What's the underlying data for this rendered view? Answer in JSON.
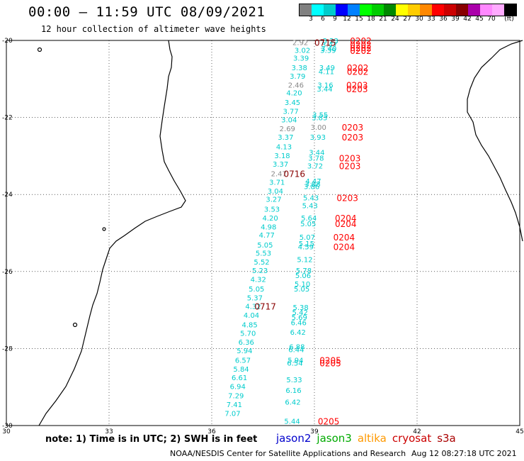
{
  "header": {
    "title": "00:00 – 11:59 UTC 08/09/2021",
    "subtitle": "12 hour collection of altimeter wave heights"
  },
  "legend": {
    "swatches": [
      "#808080",
      "#00ffff",
      "#00cccc",
      "#0000ff",
      "#0080ff",
      "#00ff00",
      "#00cc00",
      "#008800",
      "#ffff00",
      "#ffcc00",
      "#ff8800",
      "#ff0000",
      "#cc0000",
      "#880000",
      "#aa00aa",
      "#ff88ff",
      "#ffaaff",
      "#000000"
    ],
    "labels": [
      "3",
      "6",
      "9",
      "12",
      "15",
      "18",
      "21",
      "24",
      "27",
      "30",
      "33",
      "36",
      "39",
      "42",
      "45",
      "70",
      "(ft)"
    ]
  },
  "map": {
    "lon_ticks": [
      "30",
      "33",
      "36",
      "39",
      "42",
      "45"
    ],
    "lat_ticks": [
      "-20",
      "-22",
      "-24",
      "-26",
      "-28",
      "-30"
    ]
  },
  "track_values": [
    {
      "lon": 38.82,
      "lat": -20.05,
      "value": "2.92",
      "color": "#888888"
    },
    {
      "lon": 38.88,
      "lat": -20.25,
      "value": "3.02",
      "color": "#00cccc"
    },
    {
      "lon": 38.84,
      "lat": -20.45,
      "value": "3.39",
      "color": "#00cccc"
    },
    {
      "lon": 38.79,
      "lat": -20.7,
      "value": "3.38",
      "color": "#00cccc"
    },
    {
      "lon": 38.74,
      "lat": -20.92,
      "value": "3.79",
      "color": "#00cccc"
    },
    {
      "lon": 38.69,
      "lat": -21.15,
      "value": "2.46",
      "color": "#888888"
    },
    {
      "lon": 38.64,
      "lat": -21.35,
      "value": "4.20",
      "color": "#00cccc"
    },
    {
      "lon": 38.59,
      "lat": -21.6,
      "value": "3.45",
      "color": "#00cccc"
    },
    {
      "lon": 38.54,
      "lat": -21.83,
      "value": "3.77",
      "color": "#00cccc"
    },
    {
      "lon": 38.49,
      "lat": -22.05,
      "value": "3.04",
      "color": "#00cccc"
    },
    {
      "lon": 38.44,
      "lat": -22.28,
      "value": "2.69",
      "color": "#888888"
    },
    {
      "lon": 38.39,
      "lat": -22.5,
      "value": "3.37",
      "color": "#00cccc"
    },
    {
      "lon": 38.34,
      "lat": -22.75,
      "value": "4.13",
      "color": "#00cccc"
    },
    {
      "lon": 38.29,
      "lat": -22.98,
      "value": "3.18",
      "color": "#00cccc"
    },
    {
      "lon": 38.24,
      "lat": -23.2,
      "value": "3.37",
      "color": "#00cccc"
    },
    {
      "lon": 38.19,
      "lat": -23.45,
      "value": "2.47",
      "color": "#888888"
    },
    {
      "lon": 38.14,
      "lat": -23.67,
      "value": "3.71",
      "color": "#00cccc"
    },
    {
      "lon": 38.09,
      "lat": -23.9,
      "value": "3.04",
      "color": "#00cccc"
    },
    {
      "lon": 38.04,
      "lat": -24.12,
      "value": "3.27",
      "color": "#00cccc"
    },
    {
      "lon": 37.99,
      "lat": -24.37,
      "value": "3.53",
      "color": "#00cccc"
    },
    {
      "lon": 37.94,
      "lat": -24.6,
      "value": "4.20",
      "color": "#00cccc"
    },
    {
      "lon": 37.89,
      "lat": -24.83,
      "value": "4.98",
      "color": "#00cccc"
    },
    {
      "lon": 37.84,
      "lat": -25.05,
      "value": "4.77",
      "color": "#00cccc"
    },
    {
      "lon": 37.79,
      "lat": -25.3,
      "value": "5.05",
      "color": "#00cccc"
    },
    {
      "lon": 37.74,
      "lat": -25.52,
      "value": "5.53",
      "color": "#00cccc"
    },
    {
      "lon": 37.69,
      "lat": -25.75,
      "value": "5.52",
      "color": "#00cccc"
    },
    {
      "lon": 37.64,
      "lat": -25.97,
      "value": "5.23",
      "color": "#00cccc"
    },
    {
      "lon": 37.59,
      "lat": -26.2,
      "value": "4.32",
      "color": "#00cccc"
    },
    {
      "lon": 37.54,
      "lat": -26.45,
      "value": "5.05",
      "color": "#00cccc"
    },
    {
      "lon": 37.49,
      "lat": -26.68,
      "value": "5.37",
      "color": "#00cccc"
    },
    {
      "lon": 37.44,
      "lat": -26.9,
      "value": "4.32",
      "color": "#00cccc"
    },
    {
      "lon": 37.39,
      "lat": -27.13,
      "value": "4.04",
      "color": "#00cccc"
    },
    {
      "lon": 37.34,
      "lat": -27.38,
      "value": "4.85",
      "color": "#00cccc"
    },
    {
      "lon": 37.29,
      "lat": -27.6,
      "value": "5.70",
      "color": "#00cccc"
    },
    {
      "lon": 37.24,
      "lat": -27.83,
      "value": "6.36",
      "color": "#00cccc"
    },
    {
      "lon": 37.19,
      "lat": -28.05,
      "value": "5.94",
      "color": "#00cccc"
    },
    {
      "lon": 37.14,
      "lat": -28.3,
      "value": "6.57",
      "color": "#00cccc"
    },
    {
      "lon": 37.09,
      "lat": -28.53,
      "value": "5.84",
      "color": "#00cccc"
    },
    {
      "lon": 37.04,
      "lat": -28.75,
      "value": "6.61",
      "color": "#00cccc"
    },
    {
      "lon": 36.99,
      "lat": -28.98,
      "value": "6.94",
      "color": "#00cccc"
    },
    {
      "lon": 36.94,
      "lat": -29.22,
      "value": "7.29",
      "color": "#00cccc"
    },
    {
      "lon": 36.89,
      "lat": -29.45,
      "value": "7.41",
      "color": "#00cccc"
    },
    {
      "lon": 36.84,
      "lat": -29.68,
      "value": "7.07",
      "color": "#00cccc"
    },
    {
      "lon": 39.7,
      "lat": -20.0,
      "value": "3.23",
      "color": "#00cccc"
    },
    {
      "lon": 39.67,
      "lat": -20.1,
      "value": "3.47",
      "color": "#00cccc"
    },
    {
      "lon": 39.65,
      "lat": -20.2,
      "value": "3.40",
      "color": "#00cccc"
    },
    {
      "lon": 39.63,
      "lat": -20.25,
      "value": "3.39",
      "color": "#00cccc"
    },
    {
      "lon": 39.6,
      "lat": -20.7,
      "value": "3.49",
      "color": "#00cccc"
    },
    {
      "lon": 39.58,
      "lat": -20.8,
      "value": "4.11",
      "color": "#00cccc"
    },
    {
      "lon": 39.55,
      "lat": -21.15,
      "value": "3.16",
      "color": "#00cccc"
    },
    {
      "lon": 39.53,
      "lat": -21.25,
      "value": "3.44",
      "color": "#00cccc"
    },
    {
      "lon": 39.4,
      "lat": -21.92,
      "value": "3.55",
      "color": "#00cccc"
    },
    {
      "lon": 39.38,
      "lat": -22.0,
      "value": "3.83",
      "color": "#00cccc"
    },
    {
      "lon": 39.35,
      "lat": -22.25,
      "value": "3.00",
      "color": "#888888"
    },
    {
      "lon": 39.33,
      "lat": -22.5,
      "value": "3.93",
      "color": "#00cccc"
    },
    {
      "lon": 39.3,
      "lat": -22.9,
      "value": "3.44",
      "color": "#00cccc"
    },
    {
      "lon": 39.28,
      "lat": -23.05,
      "value": "3.78",
      "color": "#00cccc"
    },
    {
      "lon": 39.25,
      "lat": -23.25,
      "value": "3.72",
      "color": "#00cccc"
    },
    {
      "lon": 39.2,
      "lat": -23.65,
      "value": "4.47",
      "color": "#00cccc"
    },
    {
      "lon": 39.18,
      "lat": -23.72,
      "value": "3.88",
      "color": "#00cccc"
    },
    {
      "lon": 39.15,
      "lat": -23.78,
      "value": "3.86",
      "color": "#00cccc"
    },
    {
      "lon": 39.13,
      "lat": -24.08,
      "value": "5.43",
      "color": "#00cccc"
    },
    {
      "lon": 39.1,
      "lat": -24.28,
      "value": "5.43",
      "color": "#00cccc"
    },
    {
      "lon": 39.07,
      "lat": -24.6,
      "value": "5.64",
      "color": "#00cccc"
    },
    {
      "lon": 39.05,
      "lat": -24.75,
      "value": "5.05",
      "color": "#00cccc"
    },
    {
      "lon": 39.02,
      "lat": -25.1,
      "value": "5.07",
      "color": "#00cccc"
    },
    {
      "lon": 39.0,
      "lat": -25.27,
      "value": "5.15",
      "color": "#00cccc"
    },
    {
      "lon": 38.98,
      "lat": -25.35,
      "value": "4.59",
      "color": "#00cccc"
    },
    {
      "lon": 38.95,
      "lat": -25.68,
      "value": "5.12",
      "color": "#00cccc"
    },
    {
      "lon": 38.92,
      "lat": -25.97,
      "value": "5.78",
      "color": "#00cccc"
    },
    {
      "lon": 38.9,
      "lat": -26.1,
      "value": "5.06",
      "color": "#00cccc"
    },
    {
      "lon": 38.88,
      "lat": -26.32,
      "value": "5.10",
      "color": "#00cccc"
    },
    {
      "lon": 38.86,
      "lat": -26.45,
      "value": "5.05",
      "color": "#00cccc"
    },
    {
      "lon": 38.83,
      "lat": -26.92,
      "value": "5.38",
      "color": "#00cccc"
    },
    {
      "lon": 38.81,
      "lat": -27.05,
      "value": "5.42",
      "color": "#00cccc"
    },
    {
      "lon": 38.79,
      "lat": -27.18,
      "value": "5.69",
      "color": "#00cccc"
    },
    {
      "lon": 38.77,
      "lat": -27.32,
      "value": "6.46",
      "color": "#00cccc"
    },
    {
      "lon": 38.75,
      "lat": -27.57,
      "value": "6.42",
      "color": "#00cccc"
    },
    {
      "lon": 38.72,
      "lat": -27.95,
      "value": "6.88",
      "color": "#00cccc"
    },
    {
      "lon": 38.7,
      "lat": -28.02,
      "value": "6.44",
      "color": "#00cccc"
    },
    {
      "lon": 38.68,
      "lat": -28.3,
      "value": "5.94",
      "color": "#00cccc"
    },
    {
      "lon": 38.66,
      "lat": -28.37,
      "value": "6.54",
      "color": "#00cccc"
    },
    {
      "lon": 38.64,
      "lat": -28.8,
      "value": "5.33",
      "color": "#00cccc"
    },
    {
      "lon": 38.62,
      "lat": -29.08,
      "value": "6.16",
      "color": "#00cccc"
    },
    {
      "lon": 38.6,
      "lat": -29.38,
      "value": "6.42",
      "color": "#00cccc"
    },
    {
      "lon": 38.58,
      "lat": -29.88,
      "value": "5.44",
      "color": "#00cccc"
    }
  ],
  "time_labels": [
    {
      "lon": 39.0,
      "lat": -20.05,
      "text": "0715",
      "color": "#880000"
    },
    {
      "lon": 38.1,
      "lat": -23.45,
      "text": "0716",
      "color": "#880000"
    },
    {
      "lon": 37.25,
      "lat": -26.9,
      "text": "0717",
      "color": "#880000"
    },
    {
      "lon": 40.04,
      "lat": -20.0,
      "text": "0202",
      "color": "#ff0000"
    },
    {
      "lon": 40.04,
      "lat": -20.1,
      "text": "0202",
      "color": "#ff0000"
    },
    {
      "lon": 40.04,
      "lat": -20.18,
      "text": "0202",
      "color": "#ff0000"
    },
    {
      "lon": 40.04,
      "lat": -20.26,
      "text": "0202",
      "color": "#ff0000"
    },
    {
      "lon": 39.95,
      "lat": -20.7,
      "text": "0202",
      "color": "#ff0000"
    },
    {
      "lon": 39.95,
      "lat": -20.8,
      "text": "0202",
      "color": "#ff0000"
    },
    {
      "lon": 39.93,
      "lat": -21.15,
      "text": "0203",
      "color": "#ff0000"
    },
    {
      "lon": 39.93,
      "lat": -21.25,
      "text": "0203",
      "color": "#ff0000"
    },
    {
      "lon": 39.8,
      "lat": -22.25,
      "text": "0203",
      "color": "#ff0000"
    },
    {
      "lon": 39.8,
      "lat": -22.5,
      "text": "0203",
      "color": "#ff0000"
    },
    {
      "lon": 39.72,
      "lat": -23.05,
      "text": "0203",
      "color": "#ff0000"
    },
    {
      "lon": 39.72,
      "lat": -23.25,
      "text": "0203",
      "color": "#ff0000"
    },
    {
      "lon": 39.65,
      "lat": -24.08,
      "text": "0203",
      "color": "#ff0000"
    },
    {
      "lon": 39.6,
      "lat": -24.6,
      "text": "0204",
      "color": "#ff0000"
    },
    {
      "lon": 39.6,
      "lat": -24.75,
      "text": "0204",
      "color": "#ff0000"
    },
    {
      "lon": 39.55,
      "lat": -25.1,
      "text": "0204",
      "color": "#ff0000"
    },
    {
      "lon": 39.55,
      "lat": -25.35,
      "text": "0204",
      "color": "#ff0000"
    },
    {
      "lon": 39.15,
      "lat": -28.3,
      "text": "0205",
      "color": "#ff0000"
    },
    {
      "lon": 39.15,
      "lat": -28.37,
      "text": "0205",
      "color": "#ff0000"
    },
    {
      "lon": 39.1,
      "lat": -29.88,
      "text": "0205",
      "color": "#ff0000"
    }
  ],
  "note": "note:  1) Time is in UTC;  2) SWH is in feet",
  "satellites": [
    {
      "name": "jason2",
      "color": "#0000cc"
    },
    {
      "name": "jason3",
      "color": "#00aa00"
    },
    {
      "name": "altika",
      "color": "#ff9900"
    },
    {
      "name": "cryosat",
      "color": "#cc0000"
    },
    {
      "name": "s3a",
      "color": "#aa0000"
    }
  ],
  "footer": {
    "credit": "NOAA/NESDIS Center for Satellite Applications and Research",
    "timestamp": "Aug 12 08:27:18 UTC 2021"
  }
}
